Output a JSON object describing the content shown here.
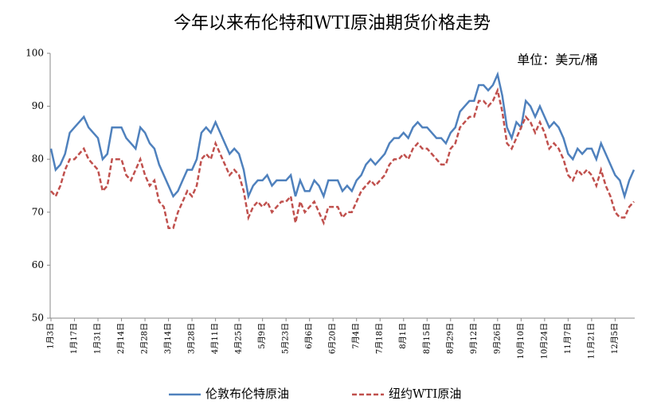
{
  "chart_data": {
    "type": "line",
    "title": "今年以来布伦特和WTI原油期货价格走势",
    "unit_note": "单位：美元/桶",
    "categories": [
      "1月3日",
      null,
      null,
      null,
      null,
      "1月17日",
      null,
      null,
      null,
      null,
      "1月31日",
      null,
      null,
      null,
      null,
      "2月14日",
      null,
      null,
      null,
      null,
      "2月28日",
      null,
      null,
      null,
      null,
      "3月14日",
      null,
      null,
      null,
      null,
      "3月28日",
      null,
      null,
      null,
      null,
      "4月11日",
      null,
      null,
      null,
      null,
      "4月25日",
      null,
      null,
      null,
      null,
      "5月9日",
      null,
      null,
      null,
      null,
      "5月23日",
      null,
      null,
      null,
      null,
      "6月6日",
      null,
      null,
      null,
      null,
      "6月20日",
      null,
      null,
      null,
      null,
      "7月4日",
      null,
      null,
      null,
      null,
      "7月18日",
      null,
      null,
      null,
      null,
      "8月1日",
      null,
      null,
      null,
      null,
      "8月15日",
      null,
      null,
      null,
      null,
      "8月29日",
      null,
      null,
      null,
      null,
      "9月12日",
      null,
      null,
      null,
      null,
      "9月26日",
      null,
      null,
      null,
      null,
      "10月10日",
      null,
      null,
      null,
      null,
      "10月24日",
      null,
      null,
      null,
      null,
      "11月7日",
      null,
      null,
      null,
      null,
      "11月21日",
      null,
      null,
      null,
      null,
      "12月5日",
      null,
      null,
      null,
      null
    ],
    "series": [
      {
        "name": "伦敦布伦特原油",
        "color": "#4f81bd",
        "dash": false,
        "values": [
          82,
          78,
          79,
          81,
          85,
          86,
          87,
          88,
          86,
          85,
          84,
          80,
          81,
          86,
          86,
          86,
          84,
          83,
          82,
          86,
          85,
          83,
          82,
          79,
          77,
          75,
          73,
          74,
          76,
          78,
          78,
          80,
          85,
          86,
          85,
          87,
          85,
          83,
          81,
          82,
          81,
          78,
          73,
          75,
          76,
          76,
          77,
          75,
          76,
          76,
          76,
          77,
          73,
          76,
          74,
          74,
          76,
          75,
          73,
          76,
          76,
          76,
          74,
          75,
          74,
          76,
          77,
          79,
          80,
          79,
          80,
          81,
          83,
          84,
          84,
          85,
          84,
          86,
          87,
          86,
          86,
          85,
          84,
          84,
          83,
          85,
          86,
          89,
          90,
          91,
          91,
          94,
          94,
          93,
          94,
          96,
          92,
          86,
          84,
          87,
          86,
          91,
          90,
          88,
          90,
          88,
          86,
          87,
          86,
          84,
          81,
          80,
          82,
          81,
          82,
          82,
          80,
          83,
          81,
          79,
          77,
          76,
          73,
          76,
          78
        ]
      },
      {
        "name": "纽约WTI原油",
        "color": "#c0504d",
        "dash": true,
        "values": [
          74,
          73,
          75,
          78,
          80,
          80,
          81,
          82,
          80,
          79,
          78,
          74,
          75,
          80,
          80,
          80,
          77,
          76,
          78,
          80,
          77,
          75,
          76,
          72,
          71,
          67,
          67,
          70,
          72,
          74,
          73,
          75,
          80,
          81,
          80,
          83,
          81,
          79,
          77,
          78,
          77,
          74,
          69,
          71,
          72,
          71,
          72,
          70,
          71,
          72,
          72,
          73,
          68,
          72,
          70,
          71,
          72,
          70,
          68,
          71,
          71,
          71,
          69,
          70,
          70,
          72,
          74,
          75,
          76,
          75,
          76,
          77,
          79,
          80,
          80,
          81,
          80,
          82,
          83,
          82,
          82,
          81,
          80,
          79,
          79,
          82,
          83,
          86,
          87,
          88,
          88,
          91,
          91,
          90,
          91,
          93,
          89,
          83,
          82,
          84,
          86,
          88,
          87,
          85,
          87,
          85,
          82,
          83,
          82,
          80,
          77,
          76,
          78,
          77,
          78,
          77,
          75,
          78,
          75,
          73,
          70,
          69,
          69,
          71,
          72
        ]
      }
    ],
    "ylim": [
      50,
      100
    ],
    "yticks": [
      50,
      60,
      70,
      80,
      90,
      100
    ],
    "grid": false
  }
}
